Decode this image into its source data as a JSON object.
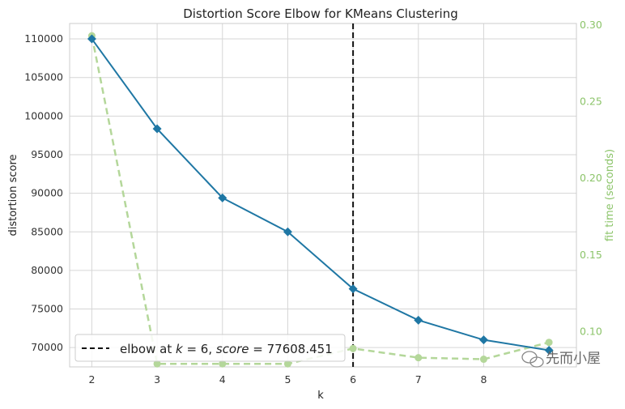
{
  "chart_data": {
    "type": "line",
    "title": "Distortion Score Elbow for KMeans Clustering",
    "xlabel": "k",
    "ylabel": "distortion score",
    "y2label": "fit time (seconds)",
    "x": [
      2,
      3,
      4,
      5,
      6,
      7,
      8,
      9
    ],
    "xticks": [
      "2",
      "3",
      "4",
      "5",
      "6",
      "7",
      "8"
    ],
    "ylim": [
      67500,
      112000
    ],
    "yticks": [
      "70000",
      "75000",
      "80000",
      "85000",
      "90000",
      "95000",
      "100000",
      "105000",
      "110000"
    ],
    "y2lim": [
      0.077,
      0.301
    ],
    "y2ticks": [
      "0.10",
      "0.15",
      "0.20",
      "0.25",
      "0.30"
    ],
    "series": [
      {
        "name": "distortion score",
        "axis": "left",
        "color": "#1f77a4",
        "style": "solid",
        "marker": "diamond",
        "values": [
          110000,
          98350,
          89400,
          85000,
          77608.451,
          73550,
          71000,
          69650
        ]
      },
      {
        "name": "fit time",
        "axis": "right",
        "color": "#b4d79a",
        "style": "dashed",
        "marker": "circle",
        "values": [
          0.293,
          0.079,
          0.079,
          0.079,
          0.089,
          0.083,
          0.082,
          0.093
        ]
      }
    ],
    "elbow": {
      "k": 6,
      "score": 77608.451,
      "color": "#111111"
    },
    "legend": {
      "position": "bottom-left",
      "label_prefix": "elbow at ",
      "k_symbol": "k",
      "eq": " = ",
      "k_value": "6",
      "sep": ", ",
      "score_symbol": "score",
      "score_value": "77608.451"
    },
    "grid": true
  },
  "watermark": "先而小屋"
}
